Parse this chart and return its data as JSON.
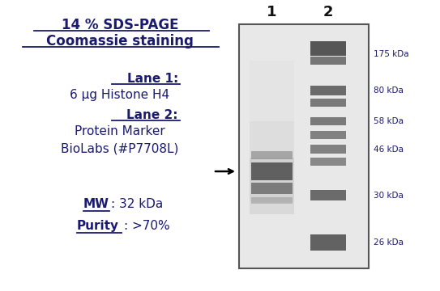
{
  "title_line1": "14 % SDS-PAGE",
  "title_line2": "Coomassie staining",
  "lane1_label": "Lane 1",
  "lane1_text": "6 µg Histone H4",
  "lane2_label": "Lane 2",
  "lane2_text1": "Protein Marker",
  "lane2_text2": "BioLabs (#P7708L)",
  "mw_label": "MW",
  "mw_value": ": 32 kDa",
  "purity_label": "Purity",
  "purity_value": ": >70%",
  "marker_labels": [
    "175 kDa",
    "80 kDa",
    "58 kDa",
    "46 kDa",
    "30 kDa",
    "26 kDa"
  ],
  "lane_numbers": [
    "1",
    "2"
  ],
  "bg_color": "#ffffff",
  "text_color": "#1a1a6e",
  "gel_bg_color": "#e0e0e0",
  "gel_border_color": "#555555"
}
